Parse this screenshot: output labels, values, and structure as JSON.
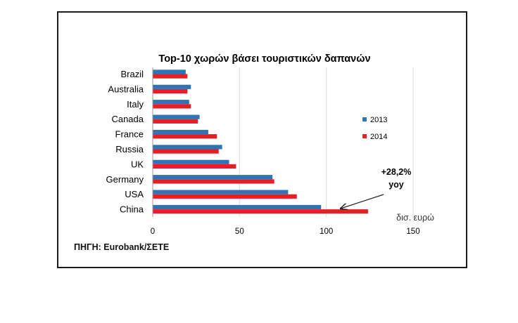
{
  "source": "ΠΗΓΗ: Eurobank/ΣΕΤΕ",
  "chart_data": {
    "type": "bar",
    "orientation": "horizontal",
    "title": "Top-10 χωρών βάσει τουριστικών δαπανών",
    "categories": [
      "Brazil",
      "Australia",
      "Italy",
      "Canada",
      "France",
      "Russia",
      "UK",
      "Germany",
      "USA",
      "China"
    ],
    "series": [
      {
        "name": "2013",
        "color": "#2e75b6",
        "values": [
          19,
          22,
          21,
          27,
          32,
          40,
          44,
          69,
          78,
          97
        ]
      },
      {
        "name": "2014",
        "color": "#e81e25",
        "values": [
          20,
          20,
          22,
          26,
          37,
          38,
          48,
          70,
          83,
          124
        ]
      }
    ],
    "xlim": [
      0,
      150
    ],
    "xticks": [
      "0",
      "50",
      "100",
      "150"
    ],
    "x_unit_label": "δισ. ευρώ",
    "legend_position": "right",
    "grid": true,
    "annotation": {
      "lines": [
        "+28,2%",
        "yoy"
      ],
      "target_category": "China",
      "target_series": "2014"
    }
  }
}
